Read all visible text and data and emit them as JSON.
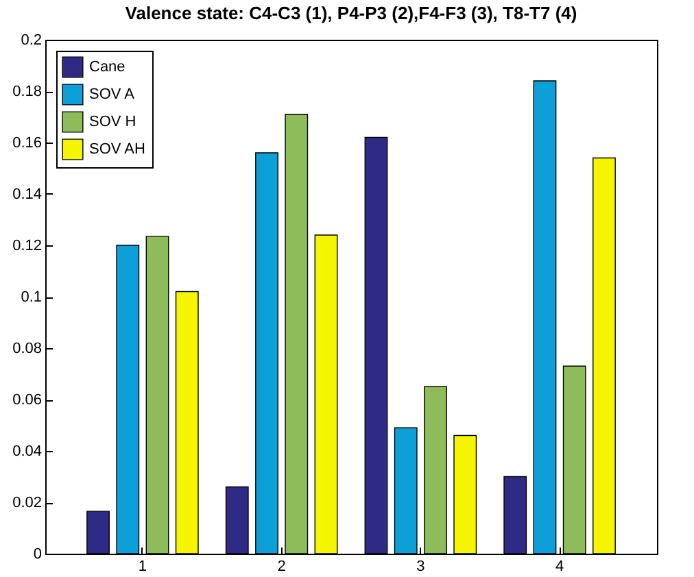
{
  "chart_data": {
    "type": "bar",
    "title": "Valence state: C4-C3 (1), P4-P3 (2),F4-F3 (3), T8-T7 (4)",
    "categories": [
      "1",
      "2",
      "3",
      "4"
    ],
    "series": [
      {
        "name": "Cane",
        "color": "#2e2a86",
        "values": [
          0.0165,
          0.026,
          0.162,
          0.03
        ]
      },
      {
        "name": "SOV A",
        "color": "#0d9fd8",
        "values": [
          0.12,
          0.156,
          0.049,
          0.184
        ]
      },
      {
        "name": "SOV H",
        "color": "#8fbc5a",
        "values": [
          0.1235,
          0.171,
          0.065,
          0.073
        ]
      },
      {
        "name": "SOV AH",
        "color": "#f5f500",
        "values": [
          0.102,
          0.124,
          0.046,
          0.154
        ]
      }
    ],
    "ylim": [
      0,
      0.2
    ],
    "yticks": [
      0,
      0.02,
      0.04,
      0.06,
      0.08,
      0.1,
      0.12,
      0.14,
      0.16,
      0.18,
      0.2
    ],
    "grid": false,
    "legend": "top left"
  }
}
